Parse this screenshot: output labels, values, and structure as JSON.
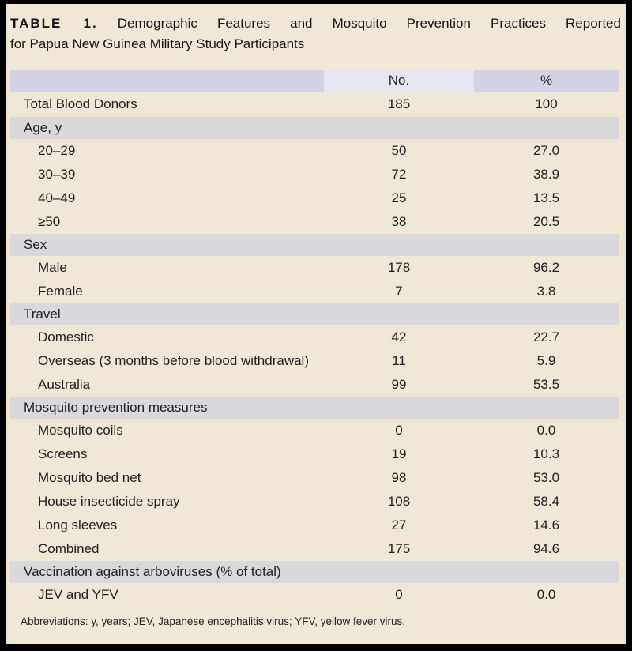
{
  "colors": {
    "page_background": "#efe8d7",
    "outer_border": "#000000",
    "header_cell": "#d3d3e6",
    "header_cell_light": "#e6e6f2",
    "section_band": "#d9d8db",
    "text": "#1f1f1f"
  },
  "title": {
    "label": "TABLE 1.",
    "line1_rest": "Demographic Features and Mosquito Prevention Practices Reported",
    "line2": "for Papua New Guinea Military Study Participants"
  },
  "table": {
    "header": {
      "col_label": "",
      "col_no": "No.",
      "col_pct": "%"
    },
    "rows": [
      {
        "kind": "total",
        "label": "Total Blood Donors",
        "no": "185",
        "pct": "100"
      },
      {
        "kind": "section",
        "label": "Age, y"
      },
      {
        "kind": "data",
        "label": "20–29",
        "no": "50",
        "pct": "27.0"
      },
      {
        "kind": "data",
        "label": "30–39",
        "no": "72",
        "pct": "38.9"
      },
      {
        "kind": "data",
        "label": "40–49",
        "no": "25",
        "pct": "13.5"
      },
      {
        "kind": "data",
        "label": "≥50",
        "no": "38",
        "pct": "20.5"
      },
      {
        "kind": "section",
        "label": "Sex"
      },
      {
        "kind": "data",
        "label": "Male",
        "no": "178",
        "pct": "96.2"
      },
      {
        "kind": "data",
        "label": "Female",
        "no": "7",
        "pct": "3.8"
      },
      {
        "kind": "section",
        "label": "Travel"
      },
      {
        "kind": "data",
        "label": "Domestic",
        "no": "42",
        "pct": "22.7"
      },
      {
        "kind": "data",
        "label": "Overseas (3 months before blood withdrawal)",
        "no": "11",
        "pct": "5.9"
      },
      {
        "kind": "data",
        "label": "Australia",
        "no": "99",
        "pct": "53.5"
      },
      {
        "kind": "section",
        "label": "Mosquito prevention measures"
      },
      {
        "kind": "data",
        "label": "Mosquito coils",
        "no": "0",
        "pct": "0.0"
      },
      {
        "kind": "data",
        "label": "Screens",
        "no": "19",
        "pct": "10.3"
      },
      {
        "kind": "data",
        "label": "Mosquito bed net",
        "no": "98",
        "pct": "53.0"
      },
      {
        "kind": "data",
        "label": "House insecticide spray",
        "no": "108",
        "pct": "58.4"
      },
      {
        "kind": "data",
        "label": "Long sleeves",
        "no": "27",
        "pct": "14.6"
      },
      {
        "kind": "data",
        "label": "Combined",
        "no": "175",
        "pct": "94.6"
      },
      {
        "kind": "section",
        "label": "Vaccination against arboviruses (% of total)"
      },
      {
        "kind": "data",
        "label": "JEV and YFV",
        "no": "0",
        "pct": "0.0"
      }
    ]
  },
  "footnote": "Abbreviations: y, years; JEV, Japanese encephalitis virus; YFV, yellow fever virus."
}
